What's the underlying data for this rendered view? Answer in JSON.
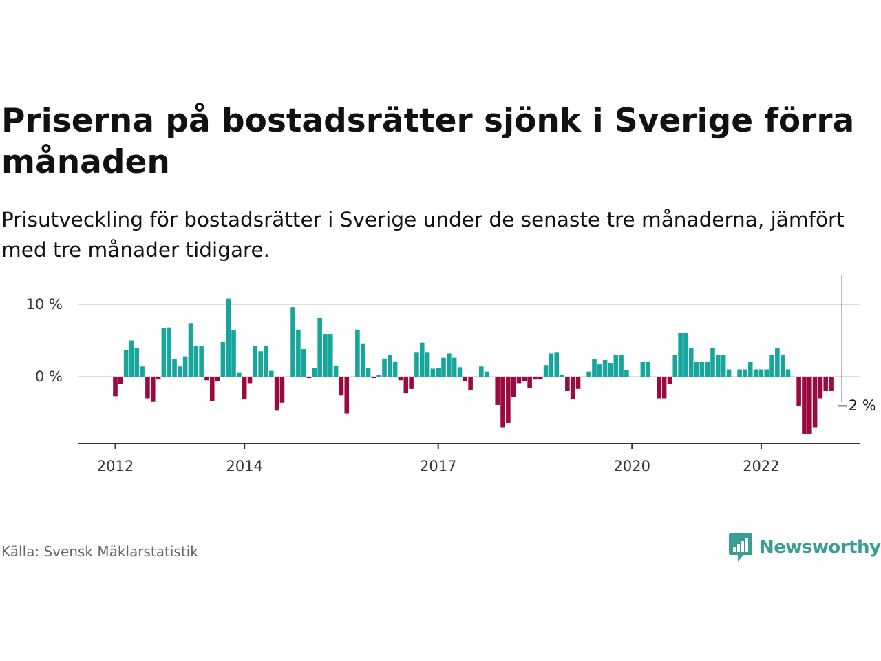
{
  "title": "Priserna på bostadsrätter sjönk i Sverige förra månaden",
  "subtitle": "Prisutveckling för bostadsrätter i Sverige under de senaste tre månaderna, jämfört med tre månader tidigare.",
  "source": "Källa: Svensk Mäklarstatistik",
  "brand": {
    "name": "Newsworthy",
    "icon": "newsworthy-chart-logo-icon",
    "color": "#3a9e94"
  },
  "colors": {
    "positive": "#17a69b",
    "negative": "#9b0a3e",
    "gridline": "#dddddd",
    "axis": "#333333"
  },
  "chart_data": {
    "type": "bar",
    "unit": "%",
    "start": "2012-01",
    "frequency": "monthly",
    "ylim": [
      -9,
      10.5
    ],
    "yticks": [
      {
        "value": 10,
        "label": "10 %"
      },
      {
        "value": 0,
        "label": "0 %"
      }
    ],
    "xticks": [
      {
        "label": "2012",
        "date": "2012-01"
      },
      {
        "label": "2014",
        "date": "2014-01"
      },
      {
        "label": "2017",
        "date": "2017-01"
      },
      {
        "label": "2020",
        "date": "2020-01"
      },
      {
        "label": "2022",
        "date": "2022-01"
      }
    ],
    "grid": true,
    "legend": "none",
    "values": [
      -2.7,
      -1.0,
      3.7,
      5.0,
      4.0,
      1.4,
      -3.0,
      -3.5,
      -0.4,
      6.7,
      6.8,
      2.4,
      1.4,
      2.8,
      7.4,
      4.2,
      4.2,
      -0.5,
      -3.4,
      -0.6,
      4.8,
      10.8,
      6.4,
      0.6,
      -3.1,
      -0.9,
      4.2,
      3.5,
      4.2,
      0.8,
      -4.7,
      -3.6,
      0,
      9.6,
      6.5,
      3.8,
      -0.2,
      1.2,
      8.1,
      5.9,
      5.9,
      1.5,
      -2.6,
      -5.1,
      0,
      6.5,
      4.6,
      1.2,
      -0.2,
      0.2,
      2.5,
      3.0,
      2.0,
      -0.5,
      -2.3,
      -1.7,
      3.4,
      4.7,
      3.4,
      1.1,
      1.2,
      2.6,
      3.2,
      2.6,
      1.3,
      -0.6,
      -1.9,
      -0.1,
      1.4,
      0.7,
      0,
      -3.9,
      -7.0,
      -6.4,
      -2.8,
      -0.9,
      -0.6,
      -1.6,
      -0.4,
      -0.4,
      1.6,
      3.2,
      3.4,
      0.3,
      -2.0,
      -3.1,
      -1.7,
      -0.1,
      0.7,
      2.4,
      1.7,
      2.3,
      1.9,
      3.0,
      3.0,
      0.9,
      0,
      0,
      2.0,
      2.0,
      0,
      -3.0,
      -3.0,
      -1.0,
      3.0,
      6.0,
      6.0,
      4.0,
      2.0,
      2.0,
      2.0,
      4.0,
      3.0,
      3.0,
      1.0,
      0,
      1.0,
      1.0,
      2.0,
      1.0,
      1.0,
      1.0,
      3.0,
      4.0,
      3.0,
      1.0,
      0,
      -4.0,
      -8.0,
      -8.0,
      -7.0,
      -3.0,
      -2.0,
      -2.0
    ],
    "annotation": {
      "text": "−2 %",
      "index": 135
    }
  }
}
